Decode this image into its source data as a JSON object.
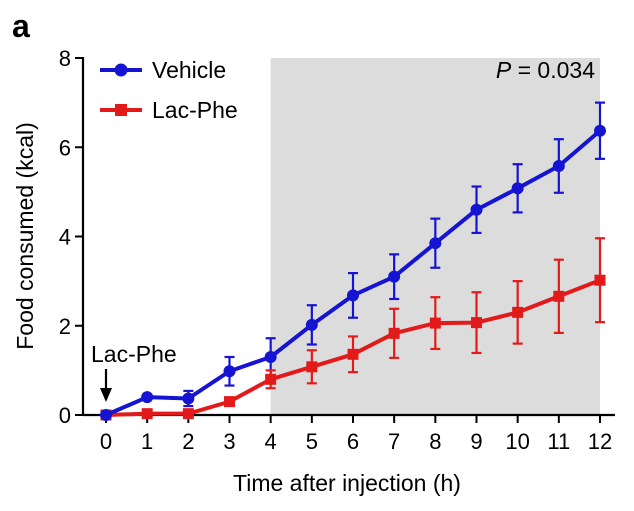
{
  "panel_label": "a",
  "chart_data": {
    "type": "line",
    "xlabel": "Time after injection (h)",
    "ylabel": "Food consumed (kcal)",
    "xlim": [
      0,
      12
    ],
    "ylim": [
      0,
      8
    ],
    "x_ticks": [
      0,
      1,
      2,
      3,
      4,
      5,
      6,
      7,
      8,
      9,
      10,
      11,
      12
    ],
    "y_ticks": [
      0,
      2,
      4,
      6,
      8
    ],
    "shaded_region": {
      "x_start": 4,
      "x_end": 12,
      "color": "#dcdcdc"
    },
    "p_value_prefix": "P",
    "p_value_rest": " = 0.034",
    "annotation": {
      "text": "Lac-Phe",
      "x": 0
    },
    "series": [
      {
        "name": "Vehicle",
        "color": "#1414d2",
        "marker": "circle",
        "x": [
          0,
          1,
          2,
          3,
          4,
          5,
          6,
          7,
          8,
          9,
          10,
          11,
          12
        ],
        "values": [
          0,
          0.4,
          0.37,
          0.98,
          1.3,
          2.02,
          2.68,
          3.1,
          3.85,
          4.6,
          5.08,
          5.58,
          6.37
        ],
        "err": [
          0,
          0.05,
          0.17,
          0.32,
          0.42,
          0.44,
          0.5,
          0.5,
          0.55,
          0.52,
          0.54,
          0.6,
          0.63
        ]
      },
      {
        "name": "Lac-Phe",
        "color": "#e21a1a",
        "marker": "square",
        "x": [
          0,
          1,
          2,
          3,
          4,
          5,
          6,
          7,
          8,
          9,
          10,
          11,
          12
        ],
        "values": [
          0,
          0.03,
          0.03,
          0.3,
          0.8,
          1.08,
          1.36,
          1.83,
          2.06,
          2.07,
          2.3,
          2.66,
          3.02
        ],
        "err": [
          0,
          0,
          0,
          0.05,
          0.2,
          0.37,
          0.4,
          0.55,
          0.58,
          0.68,
          0.7,
          0.82,
          0.94
        ]
      }
    ]
  }
}
